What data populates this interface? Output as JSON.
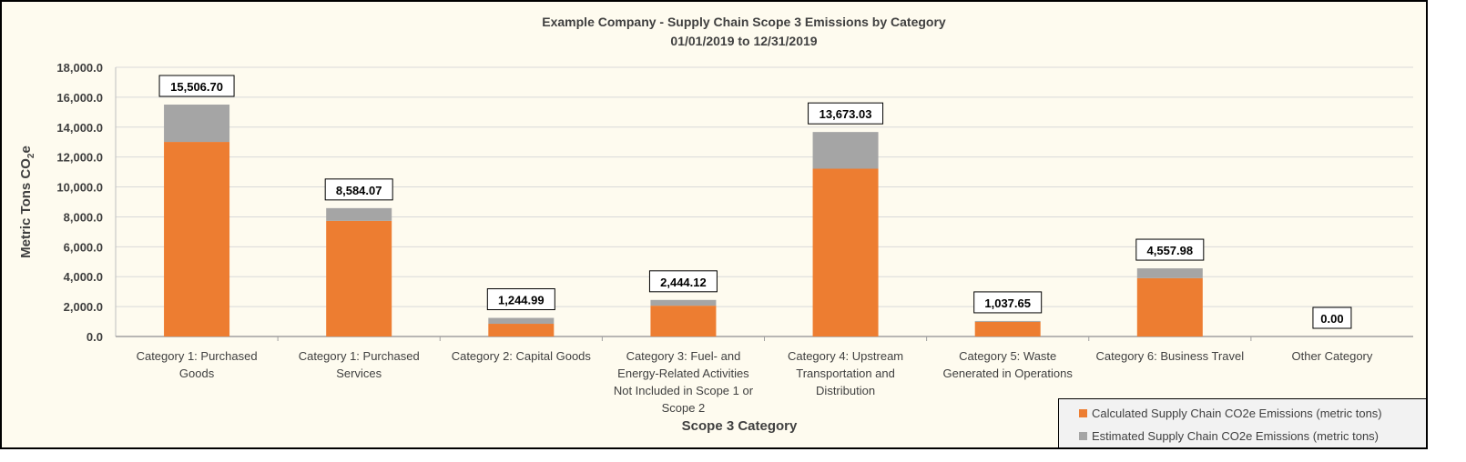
{
  "chart_data": {
    "type": "bar",
    "stacked": true,
    "title": "Example Company - Supply Chain Scope 3 Emissions by Category",
    "subtitle": "01/01/2019 to 12/31/2019",
    "xlabel": "Scope 3 Category",
    "ylabel_main": "Metric Tons CO",
    "ylabel_sub": "2",
    "ylabel_end": "e",
    "ylim": [
      0,
      18000
    ],
    "yticks": [
      "0.0",
      "2,000.0",
      "4,000.0",
      "6,000.0",
      "8,000.0",
      "10,000.0",
      "12,000.0",
      "14,000.0",
      "16,000.0",
      "18,000.0"
    ],
    "ytick_values": [
      0,
      2000,
      4000,
      6000,
      8000,
      10000,
      12000,
      14000,
      16000,
      18000
    ],
    "grid": true,
    "legend_position": "bottom-right",
    "categories": [
      [
        "Category 1: Purchased",
        "Goods"
      ],
      [
        "Category 1: Purchased",
        "Services"
      ],
      [
        "Category 2: Capital Goods"
      ],
      [
        "Category 3: Fuel- and",
        "Energy-Related Activities",
        "Not Included in Scope 1 or",
        "Scope 2"
      ],
      [
        "Category 4: Upstream",
        "Transportation and",
        "Distribution"
      ],
      [
        "Category 5: Waste",
        "Generated in Operations"
      ],
      [
        "Category 6: Business Travel"
      ],
      [
        "Other Category"
      ]
    ],
    "series": [
      {
        "name": "Calculated Supply Chain CO2e Emissions (metric tons)",
        "color": "#ed7d31",
        "values": [
          13010,
          7730,
          850,
          2060,
          11220,
          980,
          3900,
          0
        ]
      },
      {
        "name": "Estimated  Supply Chain CO2e Emissions (metric tons)",
        "color": "#a5a5a5",
        "values": [
          2496.7,
          854.07,
          394.99,
          384.12,
          2453.03,
          57.65,
          657.98,
          0
        ]
      }
    ],
    "data_labels": [
      "15,506.70",
      "8,584.07",
      "1,244.99",
      "2,444.12",
      "13,673.03",
      "1,037.65",
      "4,557.98",
      "0.00"
    ],
    "totals": [
      15506.7,
      8584.07,
      1244.99,
      2444.12,
      13673.03,
      1037.65,
      4557.98,
      0.0
    ]
  }
}
